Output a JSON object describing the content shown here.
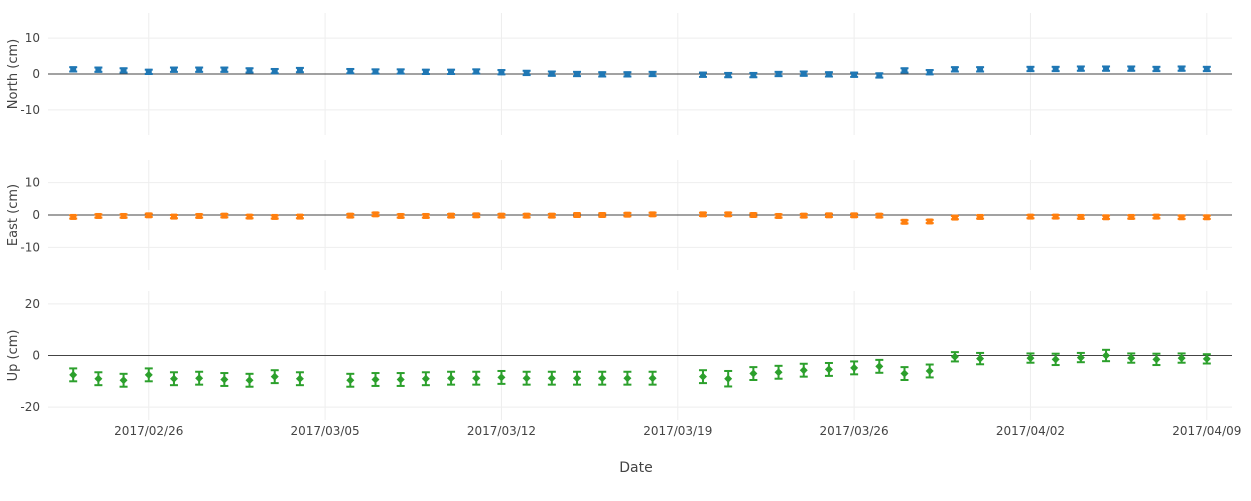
{
  "chart_data": {
    "type": "scatter",
    "x_type": "date",
    "x_range": [
      "2017-02-22",
      "2017-04-10"
    ],
    "xlabel": "Date",
    "x_ticks": [
      "2017-02-26",
      "2017-03-05",
      "2017-03-12",
      "2017-03-19",
      "2017-03-26",
      "2017-04-02",
      "2017-04-09"
    ],
    "x_tick_labels": [
      "2017/02/26",
      "2017/03/05",
      "2017/03/12",
      "2017/03/19",
      "2017/03/26",
      "2017/04/02",
      "2017/04/09"
    ],
    "grid": true,
    "panels": [
      {
        "ylabel": "North (cm)",
        "ylim": [
          -17,
          17
        ],
        "y_ticks": [
          -10,
          0,
          10
        ],
        "color": "#1f77b4",
        "marker": "square",
        "points": [
          {
            "x": "2017-02-23",
            "y": 1.3,
            "err": 0.6
          },
          {
            "x": "2017-02-24",
            "y": 1.2,
            "err": 0.6
          },
          {
            "x": "2017-02-25",
            "y": 1.0,
            "err": 0.6
          },
          {
            "x": "2017-02-26",
            "y": 0.6,
            "err": 0.6
          },
          {
            "x": "2017-02-27",
            "y": 1.2,
            "err": 0.6
          },
          {
            "x": "2017-02-28",
            "y": 1.2,
            "err": 0.6
          },
          {
            "x": "2017-03-01",
            "y": 1.2,
            "err": 0.6
          },
          {
            "x": "2017-03-02",
            "y": 1.0,
            "err": 0.6
          },
          {
            "x": "2017-03-03",
            "y": 0.8,
            "err": 0.6
          },
          {
            "x": "2017-03-04",
            "y": 1.1,
            "err": 0.6
          },
          {
            "x": "2017-03-06",
            "y": 0.8,
            "err": 0.6
          },
          {
            "x": "2017-03-07",
            "y": 0.7,
            "err": 0.6
          },
          {
            "x": "2017-03-08",
            "y": 0.7,
            "err": 0.6
          },
          {
            "x": "2017-03-09",
            "y": 0.6,
            "err": 0.6
          },
          {
            "x": "2017-03-10",
            "y": 0.6,
            "err": 0.6
          },
          {
            "x": "2017-03-11",
            "y": 0.7,
            "err": 0.6
          },
          {
            "x": "2017-03-12",
            "y": 0.5,
            "err": 0.6
          },
          {
            "x": "2017-03-13",
            "y": 0.3,
            "err": 0.6
          },
          {
            "x": "2017-03-14",
            "y": 0.1,
            "err": 0.6
          },
          {
            "x": "2017-03-15",
            "y": 0.0,
            "err": 0.6
          },
          {
            "x": "2017-03-16",
            "y": -0.1,
            "err": 0.6
          },
          {
            "x": "2017-03-17",
            "y": -0.1,
            "err": 0.6
          },
          {
            "x": "2017-03-18",
            "y": 0.0,
            "err": 0.6
          },
          {
            "x": "2017-03-20",
            "y": -0.2,
            "err": 0.6
          },
          {
            "x": "2017-03-21",
            "y": -0.3,
            "err": 0.6
          },
          {
            "x": "2017-03-22",
            "y": -0.3,
            "err": 0.6
          },
          {
            "x": "2017-03-23",
            "y": 0.0,
            "err": 0.6
          },
          {
            "x": "2017-03-24",
            "y": 0.1,
            "err": 0.6
          },
          {
            "x": "2017-03-25",
            "y": -0.1,
            "err": 0.6
          },
          {
            "x": "2017-03-26",
            "y": -0.2,
            "err": 0.6
          },
          {
            "x": "2017-03-27",
            "y": -0.4,
            "err": 0.6
          },
          {
            "x": "2017-03-28",
            "y": 1.0,
            "err": 0.6
          },
          {
            "x": "2017-03-29",
            "y": 0.5,
            "err": 0.6
          },
          {
            "x": "2017-03-30",
            "y": 1.3,
            "err": 0.6
          },
          {
            "x": "2017-03-31",
            "y": 1.3,
            "err": 0.6
          },
          {
            "x": "2017-04-02",
            "y": 1.4,
            "err": 0.6
          },
          {
            "x": "2017-04-03",
            "y": 1.4,
            "err": 0.6
          },
          {
            "x": "2017-04-04",
            "y": 1.5,
            "err": 0.6
          },
          {
            "x": "2017-04-05",
            "y": 1.5,
            "err": 0.6
          },
          {
            "x": "2017-04-06",
            "y": 1.5,
            "err": 0.6
          },
          {
            "x": "2017-04-07",
            "y": 1.4,
            "err": 0.6
          },
          {
            "x": "2017-04-08",
            "y": 1.5,
            "err": 0.6
          },
          {
            "x": "2017-04-09",
            "y": 1.4,
            "err": 0.6
          }
        ]
      },
      {
        "ylabel": "East (cm)",
        "ylim": [
          -17,
          17
        ],
        "y_ticks": [
          -10,
          0,
          10
        ],
        "color": "#ff7f0e",
        "marker": "square",
        "points": [
          {
            "x": "2017-02-23",
            "y": -0.6,
            "err": 0.5
          },
          {
            "x": "2017-02-24",
            "y": -0.3,
            "err": 0.5
          },
          {
            "x": "2017-02-25",
            "y": -0.3,
            "err": 0.5
          },
          {
            "x": "2017-02-26",
            "y": -0.1,
            "err": 0.5
          },
          {
            "x": "2017-02-27",
            "y": -0.5,
            "err": 0.5
          },
          {
            "x": "2017-02-28",
            "y": -0.3,
            "err": 0.5
          },
          {
            "x": "2017-03-01",
            "y": -0.2,
            "err": 0.5
          },
          {
            "x": "2017-03-02",
            "y": -0.5,
            "err": 0.5
          },
          {
            "x": "2017-03-03",
            "y": -0.6,
            "err": 0.5
          },
          {
            "x": "2017-03-04",
            "y": -0.5,
            "err": 0.5
          },
          {
            "x": "2017-03-06",
            "y": -0.2,
            "err": 0.5
          },
          {
            "x": "2017-03-07",
            "y": 0.2,
            "err": 0.5
          },
          {
            "x": "2017-03-08",
            "y": -0.3,
            "err": 0.5
          },
          {
            "x": "2017-03-09",
            "y": -0.3,
            "err": 0.5
          },
          {
            "x": "2017-03-10",
            "y": -0.2,
            "err": 0.5
          },
          {
            "x": "2017-03-11",
            "y": -0.1,
            "err": 0.5
          },
          {
            "x": "2017-03-12",
            "y": -0.2,
            "err": 0.5
          },
          {
            "x": "2017-03-13",
            "y": -0.2,
            "err": 0.5
          },
          {
            "x": "2017-03-14",
            "y": -0.2,
            "err": 0.5
          },
          {
            "x": "2017-03-15",
            "y": 0.0,
            "err": 0.5
          },
          {
            "x": "2017-03-16",
            "y": 0.0,
            "err": 0.5
          },
          {
            "x": "2017-03-17",
            "y": 0.1,
            "err": 0.5
          },
          {
            "x": "2017-03-18",
            "y": 0.2,
            "err": 0.5
          },
          {
            "x": "2017-03-20",
            "y": 0.2,
            "err": 0.5
          },
          {
            "x": "2017-03-21",
            "y": 0.2,
            "err": 0.5
          },
          {
            "x": "2017-03-22",
            "y": 0.0,
            "err": 0.5
          },
          {
            "x": "2017-03-23",
            "y": -0.3,
            "err": 0.5
          },
          {
            "x": "2017-03-24",
            "y": -0.2,
            "err": 0.5
          },
          {
            "x": "2017-03-25",
            "y": -0.1,
            "err": 0.5
          },
          {
            "x": "2017-03-26",
            "y": -0.1,
            "err": 0.5
          },
          {
            "x": "2017-03-27",
            "y": -0.2,
            "err": 0.5
          },
          {
            "x": "2017-03-28",
            "y": -2.1,
            "err": 0.5
          },
          {
            "x": "2017-03-29",
            "y": -2.0,
            "err": 0.5
          },
          {
            "x": "2017-03-30",
            "y": -0.8,
            "err": 0.5
          },
          {
            "x": "2017-03-31",
            "y": -0.6,
            "err": 0.5
          },
          {
            "x": "2017-04-02",
            "y": -0.5,
            "err": 0.5
          },
          {
            "x": "2017-04-03",
            "y": -0.5,
            "err": 0.5
          },
          {
            "x": "2017-04-04",
            "y": -0.6,
            "err": 0.5
          },
          {
            "x": "2017-04-05",
            "y": -0.7,
            "err": 0.5
          },
          {
            "x": "2017-04-06",
            "y": -0.6,
            "err": 0.5
          },
          {
            "x": "2017-04-07",
            "y": -0.5,
            "err": 0.5
          },
          {
            "x": "2017-04-08",
            "y": -0.7,
            "err": 0.5
          },
          {
            "x": "2017-04-09",
            "y": -0.7,
            "err": 0.5
          }
        ]
      },
      {
        "ylabel": "Up (cm)",
        "ylim": [
          -25,
          25
        ],
        "y_ticks": [
          -20,
          0,
          20
        ],
        "color": "#2ca02c",
        "marker": "diamond",
        "points": [
          {
            "x": "2017-02-23",
            "y": -7.5,
            "err": 2.5
          },
          {
            "x": "2017-02-24",
            "y": -9.0,
            "err": 2.5
          },
          {
            "x": "2017-02-25",
            "y": -9.6,
            "err": 2.5
          },
          {
            "x": "2017-02-26",
            "y": -7.5,
            "err": 2.5
          },
          {
            "x": "2017-02-27",
            "y": -9.0,
            "err": 2.5
          },
          {
            "x": "2017-02-28",
            "y": -8.8,
            "err": 2.5
          },
          {
            "x": "2017-03-01",
            "y": -9.3,
            "err": 2.5
          },
          {
            "x": "2017-03-02",
            "y": -9.6,
            "err": 2.5
          },
          {
            "x": "2017-03-03",
            "y": -8.2,
            "err": 2.5
          },
          {
            "x": "2017-03-04",
            "y": -9.0,
            "err": 2.5
          },
          {
            "x": "2017-03-06",
            "y": -9.6,
            "err": 2.5
          },
          {
            "x": "2017-03-07",
            "y": -9.3,
            "err": 2.5
          },
          {
            "x": "2017-03-08",
            "y": -9.3,
            "err": 2.5
          },
          {
            "x": "2017-03-09",
            "y": -9.0,
            "err": 2.5
          },
          {
            "x": "2017-03-10",
            "y": -8.8,
            "err": 2.5
          },
          {
            "x": "2017-03-11",
            "y": -8.8,
            "err": 2.5
          },
          {
            "x": "2017-03-12",
            "y": -8.5,
            "err": 2.5
          },
          {
            "x": "2017-03-13",
            "y": -8.8,
            "err": 2.5
          },
          {
            "x": "2017-03-14",
            "y": -8.8,
            "err": 2.5
          },
          {
            "x": "2017-03-15",
            "y": -8.8,
            "err": 2.5
          },
          {
            "x": "2017-03-16",
            "y": -8.8,
            "err": 2.5
          },
          {
            "x": "2017-03-17",
            "y": -8.8,
            "err": 2.5
          },
          {
            "x": "2017-03-18",
            "y": -8.8,
            "err": 2.5
          },
          {
            "x": "2017-03-20",
            "y": -8.2,
            "err": 2.5
          },
          {
            "x": "2017-03-21",
            "y": -9.0,
            "err": 3.0
          },
          {
            "x": "2017-03-22",
            "y": -7.0,
            "err": 2.5
          },
          {
            "x": "2017-03-23",
            "y": -6.5,
            "err": 2.5
          },
          {
            "x": "2017-03-24",
            "y": -5.7,
            "err": 2.5
          },
          {
            "x": "2017-03-25",
            "y": -5.4,
            "err": 2.5
          },
          {
            "x": "2017-03-26",
            "y": -4.8,
            "err": 2.5
          },
          {
            "x": "2017-03-27",
            "y": -4.2,
            "err": 2.5
          },
          {
            "x": "2017-03-28",
            "y": -7.0,
            "err": 2.5
          },
          {
            "x": "2017-03-29",
            "y": -6.0,
            "err": 2.5
          },
          {
            "x": "2017-03-30",
            "y": -0.5,
            "err": 1.8
          },
          {
            "x": "2017-03-31",
            "y": -1.2,
            "err": 2.2
          },
          {
            "x": "2017-04-02",
            "y": -1.0,
            "err": 1.8
          },
          {
            "x": "2017-04-03",
            "y": -1.5,
            "err": 2.2
          },
          {
            "x": "2017-04-04",
            "y": -0.8,
            "err": 1.8
          },
          {
            "x": "2017-04-05",
            "y": 0.0,
            "err": 2.2
          },
          {
            "x": "2017-04-06",
            "y": -1.0,
            "err": 1.8
          },
          {
            "x": "2017-04-07",
            "y": -1.5,
            "err": 2.2
          },
          {
            "x": "2017-04-08",
            "y": -1.0,
            "err": 1.8
          },
          {
            "x": "2017-04-09",
            "y": -1.3,
            "err": 1.8
          }
        ]
      }
    ]
  }
}
